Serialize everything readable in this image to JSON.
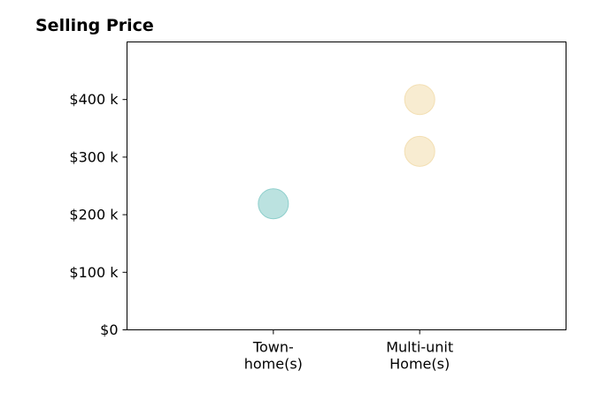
{
  "chart_data": {
    "type": "scatter",
    "title": "Selling Price",
    "xlabel": "",
    "ylabel": "",
    "categories": [
      "Town-\nhome(s)",
      "Multi-unit\nHome(s)"
    ],
    "y_ticks": [
      {
        "value": 0,
        "label": "$0"
      },
      {
        "value": 100000,
        "label": "$100 k"
      },
      {
        "value": 200000,
        "label": "$200 k"
      },
      {
        "value": 300000,
        "label": "$300 k"
      },
      {
        "value": 400000,
        "label": "$400 k"
      }
    ],
    "ylim": [
      0,
      500000
    ],
    "x_range": [
      -1,
      2
    ],
    "grid": false,
    "points": [
      {
        "category": "Town-\nhome(s)",
        "y": 219000,
        "color": "#8ecfcc"
      },
      {
        "category": "Multi-unit\nHome(s)",
        "y": 310000,
        "color": "#f3dfb3"
      },
      {
        "category": "Multi-unit\nHome(s)",
        "y": 400000,
        "color": "#f3dfb3"
      }
    ]
  }
}
